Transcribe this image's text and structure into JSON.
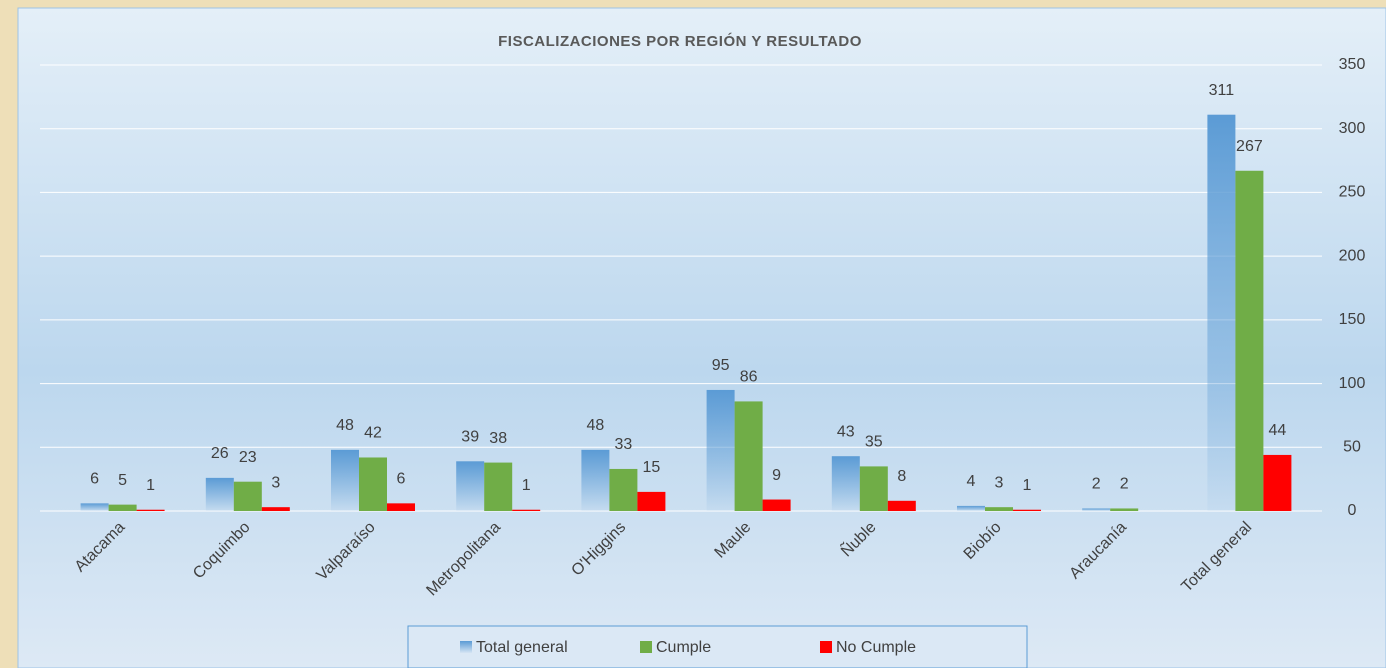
{
  "chart_data": {
    "type": "bar",
    "title": "FISCALIZACIONES POR REGIÓN Y RESULTADO",
    "categories": [
      "Atacama",
      "Coquimbo",
      "Valparaíso",
      "Metropolitana",
      "O'Higgins",
      "Maule",
      "Ñuble",
      "Biobío",
      "Araucanía",
      "Total general"
    ],
    "series": [
      {
        "name": "Total general",
        "color": "#5b9bd5",
        "values": [
          6,
          26,
          48,
          39,
          48,
          95,
          43,
          4,
          2,
          311
        ]
      },
      {
        "name": "Cumple",
        "color": "#70ad47",
        "values": [
          5,
          23,
          42,
          38,
          33,
          86,
          35,
          3,
          2,
          267
        ]
      },
      {
        "name": "No Cumple",
        "color": "#ff0000",
        "values": [
          1,
          3,
          6,
          1,
          15,
          9,
          8,
          1,
          null,
          44
        ]
      }
    ],
    "ylim": [
      0,
      350
    ],
    "yticks": [
      0,
      50,
      100,
      150,
      200,
      250,
      300,
      350
    ],
    "grid": true,
    "y_axis_side": "right",
    "legend": "bottom"
  }
}
